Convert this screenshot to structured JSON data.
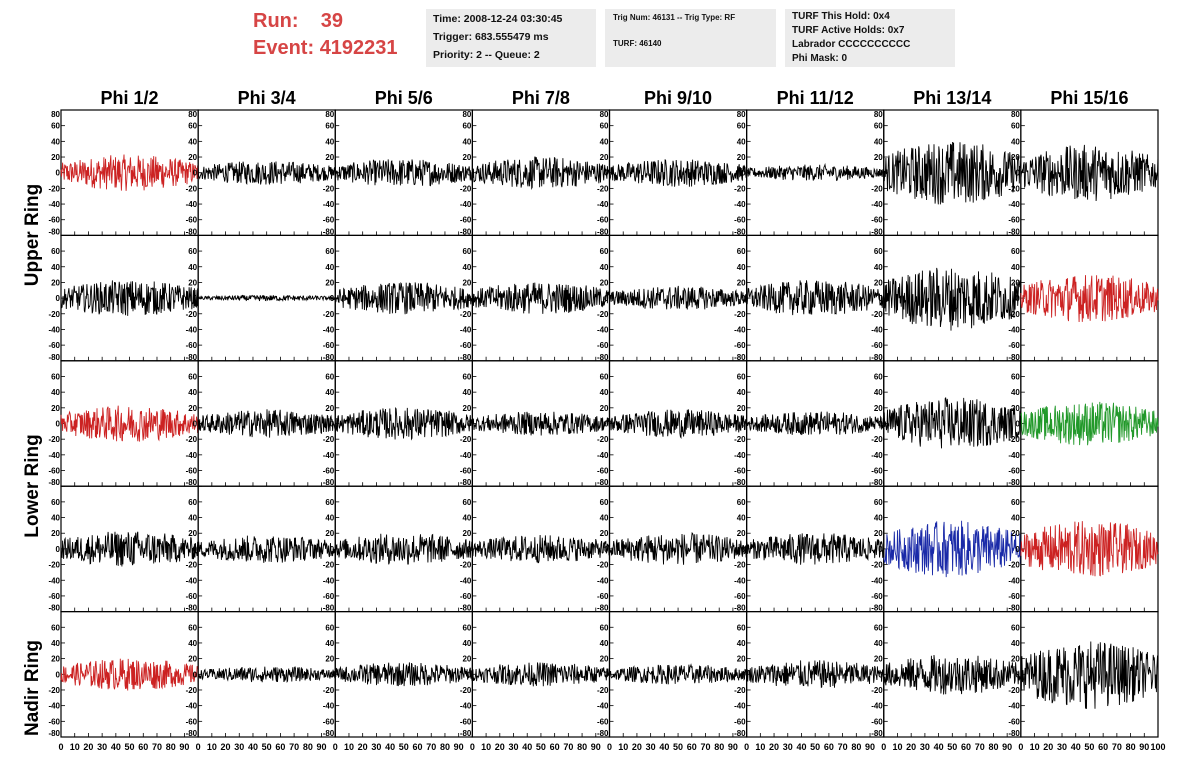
{
  "header": {
    "run_label": "Run:",
    "run_value": "39",
    "event_label": "Event:",
    "event_value": "4192231"
  },
  "info_box_1": {
    "time": "Time: 2008-12-24 03:30:45",
    "trigger": "Trigger: 683.555479 ms",
    "priority": "Priority: 2 -- Queue: 2"
  },
  "info_box_2": {
    "trig": "Trig Num: 46131 -- Trig Type: RF",
    "turf": "TURF: 46140"
  },
  "info_box_3": {
    "hold": "TURF This Hold: 0x4",
    "active": "TURF Active Holds: 0x7",
    "labrador": "Labrador CCCCCCCCCC",
    "phimask": "Phi Mask: 0"
  },
  "ring_labels": [
    "Upper Ring",
    "Lower Ring",
    "Nadir Ring"
  ],
  "colors": {
    "black": "#000000",
    "red": "#cc2222",
    "green": "#22992a",
    "blue": "#1a2aa8",
    "run_red": "#d64545"
  },
  "chart_data": {
    "type": "line",
    "columns": [
      "Phi 1/2",
      "Phi 3/4",
      "Phi 5/6",
      "Phi 7/8",
      "Phi 9/10",
      "Phi 11/12",
      "Phi 13/14",
      "Phi 15/16"
    ],
    "row_count": 5,
    "xlim": [
      0,
      100
    ],
    "ylim": [
      -80,
      80
    ],
    "x_ticks": [
      0,
      10,
      20,
      30,
      40,
      50,
      60,
      70,
      80,
      90,
      100
    ],
    "y_ticks": [
      -80,
      -60,
      -40,
      -20,
      0,
      20,
      40,
      60,
      80
    ],
    "panel_colors": [
      [
        "red",
        "black",
        "black",
        "black",
        "black",
        "black",
        "black",
        "black"
      ],
      [
        "black",
        "black",
        "black",
        "black",
        "black",
        "black",
        "black",
        "red"
      ],
      [
        "red",
        "black",
        "black",
        "black",
        "black",
        "black",
        "black",
        "green"
      ],
      [
        "black",
        "black",
        "black",
        "black",
        "black",
        "black",
        "blue",
        "red"
      ],
      [
        "red",
        "black",
        "black",
        "black",
        "black",
        "black",
        "black",
        "black"
      ]
    ],
    "panel_amplitudes": [
      [
        18,
        12,
        14,
        16,
        14,
        8,
        32,
        28
      ],
      [
        18,
        3,
        16,
        16,
        12,
        18,
        32,
        24
      ],
      [
        18,
        14,
        16,
        12,
        14,
        12,
        26,
        22
      ],
      [
        18,
        14,
        16,
        14,
        16,
        16,
        28,
        28
      ],
      [
        16,
        8,
        12,
        12,
        10,
        14,
        20,
        34
      ]
    ]
  }
}
